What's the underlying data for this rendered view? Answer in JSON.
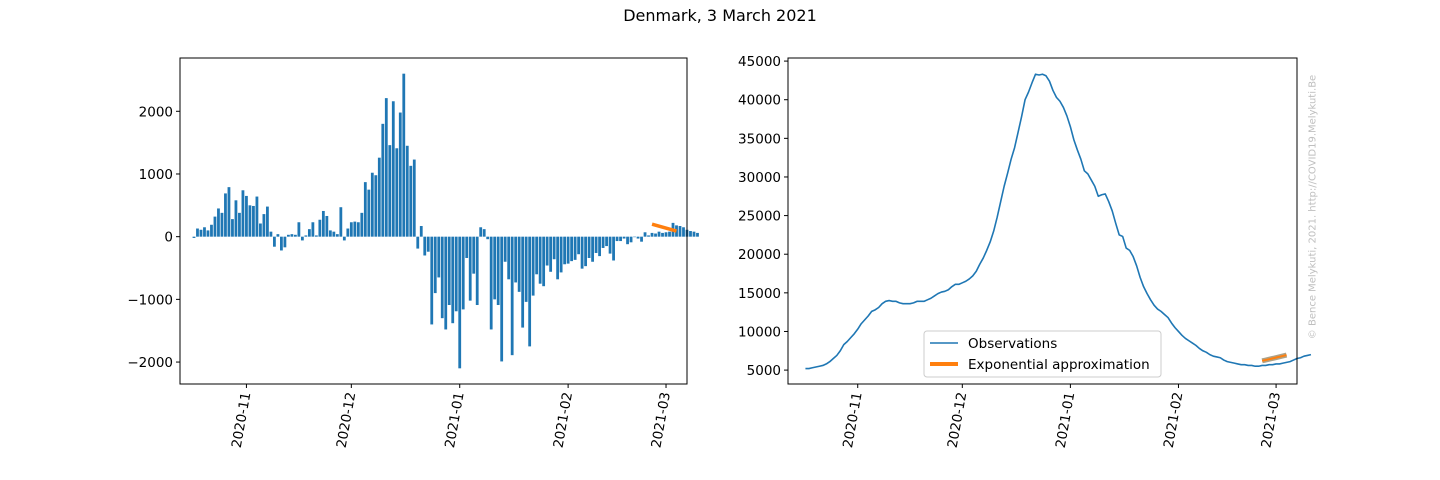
{
  "title": "Denmark, 3 March 2021",
  "credit": "© Bence Melykuti, 2021. http://COVID19.Melykuti.Be",
  "colors": {
    "blue": "#1f77b4",
    "orange": "#ff7f0e",
    "fit_band": "#8a7a55"
  },
  "chart_data": [
    {
      "type": "bar",
      "ylim": [
        -2350,
        2850
      ],
      "yticks": [
        -2000,
        -1000,
        0,
        1000,
        2000
      ],
      "ytick_labels": [
        "−2000",
        "−1000",
        "0",
        "1000",
        "2000"
      ],
      "xlim": [
        "2020-10-13",
        "2021-03-07"
      ],
      "xticks": [
        "2020-11-01",
        "2020-12-01",
        "2021-01-01",
        "2021-02-01",
        "2021-03-01"
      ],
      "xtick_labels": [
        "2020-11",
        "2020-12",
        "2021-01",
        "2021-02",
        "2021-03"
      ],
      "x_start": "2020-10-17",
      "values": [
        -20,
        130,
        110,
        150,
        100,
        190,
        320,
        450,
        380,
        690,
        790,
        280,
        580,
        380,
        740,
        650,
        500,
        490,
        640,
        210,
        360,
        480,
        80,
        -160,
        40,
        -220,
        -170,
        30,
        40,
        30,
        230,
        -60,
        20,
        120,
        230,
        20,
        270,
        410,
        330,
        100,
        80,
        40,
        470,
        -60,
        130,
        230,
        240,
        230,
        380,
        870,
        750,
        1020,
        980,
        1260,
        1800,
        2210,
        1460,
        2160,
        1410,
        1980,
        2600,
        1450,
        1130,
        1230,
        -190,
        170,
        -300,
        -240,
        -1400,
        -900,
        -650,
        -1300,
        -1480,
        -1090,
        -1380,
        -1190,
        -2100,
        -1160,
        -340,
        -1020,
        -590,
        -1090,
        150,
        120,
        -40,
        -1480,
        -1000,
        -1090,
        -1990,
        -400,
        -680,
        -1890,
        -730,
        -880,
        -1450,
        -1040,
        -1750,
        -940,
        -600,
        -750,
        -790,
        -460,
        -560,
        -360,
        -680,
        -570,
        -440,
        -430,
        -390,
        -370,
        -280,
        -510,
        -470,
        -340,
        -400,
        -260,
        -310,
        -180,
        -150,
        -270,
        -380,
        -70,
        -70,
        -30,
        -120,
        -90,
        0,
        -30,
        -80,
        70,
        20,
        60,
        50,
        80,
        60,
        70,
        80,
        220,
        180,
        170,
        150,
        110,
        90,
        80,
        60
      ],
      "fit": {
        "x": [
          "2021-02-25",
          "2021-03-04"
        ],
        "y": [
          200,
          90
        ]
      }
    },
    {
      "type": "line",
      "ylim": [
        3200,
        45400
      ],
      "yticks": [
        5000,
        10000,
        15000,
        20000,
        25000,
        30000,
        35000,
        40000,
        45000
      ],
      "ytick_labels": [
        "5000",
        "10000",
        "15000",
        "20000",
        "25000",
        "30000",
        "35000",
        "40000",
        "45000"
      ],
      "xlim": [
        "2020-10-12",
        "2021-03-07"
      ],
      "xticks": [
        "2020-11-01",
        "2020-12-01",
        "2021-01-01",
        "2021-02-01",
        "2021-03-01"
      ],
      "xtick_labels": [
        "2020-11",
        "2020-12",
        "2021-01",
        "2021-02",
        "2021-03"
      ],
      "legend_position": "lower-center",
      "series": [
        {
          "name": "Observations",
          "x_start": "2020-10-17",
          "values": [
            5200,
            5200,
            5300,
            5400,
            5500,
            5600,
            5800,
            6100,
            6500,
            6900,
            7500,
            8300,
            8700,
            9200,
            9700,
            10300,
            11000,
            11500,
            12000,
            12600,
            12800,
            13100,
            13600,
            13900,
            14000,
            13900,
            13900,
            13700,
            13600,
            13600,
            13600,
            13700,
            13900,
            13900,
            13900,
            14100,
            14300,
            14600,
            14900,
            15100,
            15200,
            15400,
            15800,
            16100,
            16100,
            16300,
            16500,
            16800,
            17200,
            17800,
            18700,
            19500,
            20500,
            21600,
            23000,
            24800,
            26800,
            28800,
            30500,
            32300,
            33800,
            35800,
            37800,
            40000,
            41000,
            42200,
            43300,
            43200,
            43300,
            43100,
            42400,
            41200,
            40300,
            39800,
            39000,
            37900,
            36500,
            34800,
            33500,
            32300,
            30800,
            30400,
            29600,
            28800,
            27500,
            27700,
            27800,
            26800,
            25600,
            24000,
            22500,
            22300,
            20800,
            20500,
            19700,
            18500,
            17000,
            15800,
            14900,
            14100,
            13400,
            12900,
            12600,
            12200,
            11800,
            11100,
            10500,
            10000,
            9500,
            9100,
            8800,
            8500,
            8200,
            7800,
            7500,
            7300,
            7000,
            6800,
            6700,
            6600,
            6300,
            6100,
            6000,
            5900,
            5800,
            5700,
            5700,
            5600,
            5600,
            5500,
            5500,
            5600,
            5600,
            5700,
            5700,
            5800,
            5800,
            5900,
            6000,
            6100,
            6300,
            6500,
            6600,
            6800,
            6900,
            7000
          ]
        },
        {
          "name": "Exponential approximation",
          "x": [
            "2021-02-25",
            "2021-03-04"
          ],
          "y": [
            6200,
            6950
          ]
        }
      ]
    }
  ]
}
